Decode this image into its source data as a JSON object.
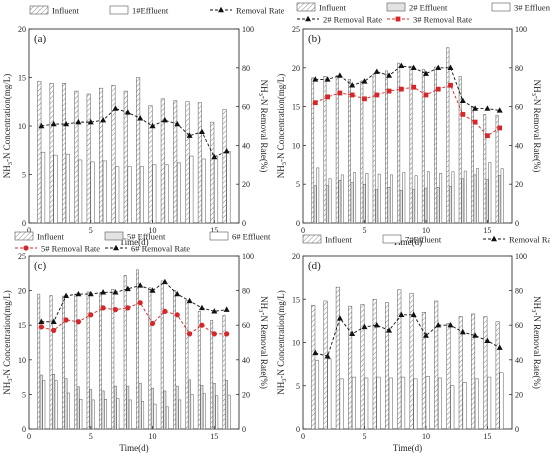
{
  "colors": {
    "axis": "#333333",
    "bar_stroke": "#555555",
    "hatch": "#777777",
    "line": "#111111",
    "red": "#d62728"
  },
  "chart_data": [
    {
      "type": "bar",
      "panel": "(a)",
      "xlabel": "Time(d)",
      "ylabel_left": "NH3-N Concentration(mg/L)",
      "ylabel_right": "NH3-N Removal Rate(%)",
      "xlim": [
        0,
        17
      ],
      "ylim": [
        0,
        20
      ],
      "y2lim": [
        0,
        100
      ],
      "xticks": [
        0,
        5,
        10,
        15
      ],
      "yticks": [
        0,
        5,
        10,
        15,
        20
      ],
      "y2ticks": [
        0,
        20,
        40,
        60,
        80,
        100
      ],
      "x": [
        1,
        2,
        3,
        4,
        5,
        6,
        7,
        8,
        9,
        10,
        11,
        12,
        13,
        14,
        15,
        16
      ],
      "legend": {
        "rows": [
          [
            {
              "name": "Influent",
              "kind": "bar_hatch"
            },
            {
              "name": "1#Effluent",
              "kind": "bar_white"
            },
            {
              "name": "Removal Rate",
              "kind": "line_black"
            }
          ]
        ]
      },
      "bars": [
        {
          "name": "Influent",
          "style": "hatch",
          "values": [
            14.6,
            14.4,
            14.4,
            13.6,
            13.3,
            13.9,
            14.2,
            13.6,
            15.0,
            12.1,
            12.8,
            12.6,
            12.5,
            12.4,
            10.4,
            11.7
          ]
        },
        {
          "name": "1#Effluent",
          "style": "white",
          "values": [
            7.3,
            7.0,
            7.1,
            6.5,
            6.3,
            6.4,
            5.8,
            5.8,
            5.8,
            6.0,
            6.0,
            6.2,
            6.9,
            6.6,
            6.9,
            7.4
          ]
        }
      ],
      "lines": [
        {
          "name": "Removal Rate",
          "color": "black",
          "marker": "triangle",
          "values": [
            50,
            51,
            51,
            52,
            52,
            53,
            59,
            57,
            54,
            50,
            53,
            51,
            45,
            47,
            34,
            37
          ]
        }
      ]
    },
    {
      "type": "bar",
      "panel": "(b)",
      "xlabel": "Time(d)",
      "ylabel_left": "NH3-N Concentration(mg/L)",
      "ylabel_right": "NH3-N Removal Rate(%)",
      "xlim": [
        0,
        17
      ],
      "ylim": [
        0,
        25
      ],
      "y2lim": [
        0,
        100
      ],
      "xticks": [
        0,
        5,
        10,
        15
      ],
      "yticks": [
        0,
        5,
        10,
        15,
        20,
        25
      ],
      "y2ticks": [
        0,
        20,
        40,
        60,
        80,
        100
      ],
      "x": [
        1,
        2,
        3,
        4,
        5,
        6,
        7,
        8,
        9,
        10,
        11,
        12,
        13,
        14,
        15,
        16
      ],
      "legend": {
        "rows": [
          [
            {
              "name": "Influent",
              "kind": "bar_hatch"
            },
            {
              "name": "2# Effluent",
              "kind": "bar_gray"
            },
            {
              "name": "3# Effluent",
              "kind": "bar_white"
            }
          ],
          [
            {
              "name": "2# Removal Rate",
              "kind": "line_black"
            },
            {
              "name": "3# Removal Rate",
              "kind": "line_red"
            }
          ]
        ]
      },
      "bars": [
        {
          "name": "Influent",
          "style": "hatch",
          "values": [
            18.7,
            18.9,
            19.0,
            18.5,
            18.3,
            19.2,
            19.6,
            20.6,
            20.2,
            19.8,
            20.1,
            22.6,
            18.9,
            15.0,
            14.0,
            13.9
          ]
        },
        {
          "name": "2# Effluent",
          "style": "gray",
          "values": [
            4.8,
            4.8,
            5.5,
            5.2,
            5.0,
            4.3,
            4.6,
            4.2,
            4.3,
            4.5,
            4.6,
            4.7,
            5.7,
            6.2,
            5.6,
            6.1
          ]
        },
        {
          "name": "3# Effluent",
          "style": "white",
          "values": [
            7.1,
            5.7,
            6.2,
            6.5,
            6.4,
            6.3,
            6.2,
            6.5,
            6.1,
            6.6,
            6.4,
            6.6,
            6.7,
            7.0,
            7.8,
            7.0
          ]
        }
      ],
      "lines": [
        {
          "name": "2# Removal Rate",
          "color": "black",
          "marker": "triangle",
          "values": [
            74,
            74,
            76,
            71,
            73,
            78,
            76,
            81,
            80,
            77,
            80,
            80,
            63,
            59,
            59,
            58
          ]
        },
        {
          "name": "3# Removal Rate",
          "color": "red",
          "marker": "square",
          "values": [
            62,
            65,
            67,
            66,
            64,
            66,
            68,
            69,
            70,
            66,
            69,
            71,
            56,
            52,
            45,
            49
          ]
        }
      ]
    },
    {
      "type": "bar",
      "panel": "(c)",
      "xlabel": "Time(d)",
      "ylabel_left": "NH3-N Concentration(mg/L)",
      "ylabel_right": "NH3-N Removal Rate(%)",
      "xlim": [
        0,
        17
      ],
      "ylim": [
        0,
        25
      ],
      "y2lim": [
        0,
        100
      ],
      "xticks": [
        0,
        5,
        10,
        15
      ],
      "yticks": [
        0,
        5,
        10,
        15,
        20,
        25
      ],
      "y2ticks": [
        0,
        20,
        40,
        60,
        80,
        100
      ],
      "x": [
        1,
        2,
        3,
        4,
        5,
        6,
        7,
        8,
        9,
        10,
        11,
        12,
        13,
        14,
        15,
        16
      ],
      "legend": {
        "rows": [
          [
            {
              "name": "Influent",
              "kind": "bar_hatch"
            },
            {
              "name": "5# Effluent",
              "kind": "bar_gray"
            },
            {
              "name": "6# Effluent",
              "kind": "bar_white"
            }
          ],
          [
            {
              "name": "5# Removal Rate",
              "kind": "line_red"
            },
            {
              "name": "6# Removal Rate",
              "kind": "line_black"
            }
          ]
        ]
      },
      "bars": [
        {
          "name": "Influent",
          "style": "hatch",
          "values": [
            19.5,
            19.3,
            19.2,
            19.5,
            19.8,
            19.6,
            20.2,
            22.2,
            23.0,
            20.4,
            21.4,
            20.0,
            18.6,
            17.0,
            15.7,
            16.4
          ]
        },
        {
          "name": "5# Effluent",
          "style": "gray",
          "values": [
            7.8,
            7.9,
            7.3,
            6.1,
            5.7,
            5.5,
            6.2,
            6.2,
            6.6,
            5.9,
            5.5,
            6.2,
            7.1,
            6.3,
            6.6,
            7.0
          ]
        },
        {
          "name": "6# Effluent",
          "style": "white",
          "values": [
            7.0,
            7.0,
            5.2,
            4.3,
            4.2,
            4.3,
            4.4,
            4.2,
            4.0,
            3.6,
            3.2,
            4.2,
            5.0,
            5.1,
            4.8,
            4.9
          ]
        }
      ],
      "lines": [
        {
          "name": "5# Removal Rate",
          "color": "red",
          "marker": "circle",
          "values": [
            59,
            57,
            63,
            62,
            66,
            70,
            69,
            70,
            73,
            61,
            68,
            66,
            55,
            60,
            55,
            55
          ]
        },
        {
          "name": "6# Removal Rate",
          "color": "black",
          "marker": "triangle",
          "values": [
            62,
            62,
            77,
            78,
            78,
            79,
            79,
            81,
            83,
            80,
            85,
            78,
            74,
            70,
            68,
            69
          ]
        }
      ]
    },
    {
      "type": "bar",
      "panel": "(d)",
      "xlabel": "Time(d)",
      "ylabel_left": "NH3-N Concentration(mg/L)",
      "ylabel_right": "NH3-N Removal Rate(%)",
      "xlim": [
        0,
        17
      ],
      "ylim": [
        0,
        20
      ],
      "y2lim": [
        0,
        100
      ],
      "xticks": [
        0,
        5,
        10,
        15
      ],
      "yticks": [
        0,
        5,
        10,
        15,
        20
      ],
      "y2ticks": [
        0,
        20,
        40,
        60,
        80,
        100
      ],
      "x": [
        1,
        2,
        3,
        4,
        5,
        6,
        7,
        8,
        9,
        10,
        11,
        12,
        13,
        14,
        15,
        16
      ],
      "legend": {
        "rows": [
          [
            {
              "name": "Influent",
              "kind": "bar_hatch"
            },
            {
              "name": "7#Effluent",
              "kind": "bar_white"
            },
            {
              "name": "Removal Rate",
              "kind": "line_black"
            }
          ]
        ]
      },
      "bars": [
        {
          "name": "Influent",
          "style": "hatch",
          "values": [
            14.3,
            14.8,
            16.4,
            14.2,
            14.4,
            15.0,
            14.6,
            16.1,
            15.7,
            13.5,
            14.8,
            12.2,
            13.0,
            13.3,
            13.0,
            12.4
          ]
        },
        {
          "name": "7#Effluent",
          "style": "white",
          "values": [
            7.9,
            8.1,
            5.8,
            6.0,
            5.9,
            6.0,
            5.9,
            6.0,
            5.8,
            6.1,
            5.9,
            5.0,
            5.4,
            5.8,
            6.0,
            6.5
          ]
        }
      ],
      "lines": [
        {
          "name": "Removal Rate",
          "color": "black",
          "marker": "triangle",
          "values": [
            44,
            42,
            64,
            55,
            59,
            60,
            57,
            66,
            66,
            54,
            60,
            60,
            56,
            54,
            51,
            47
          ]
        }
      ]
    }
  ]
}
